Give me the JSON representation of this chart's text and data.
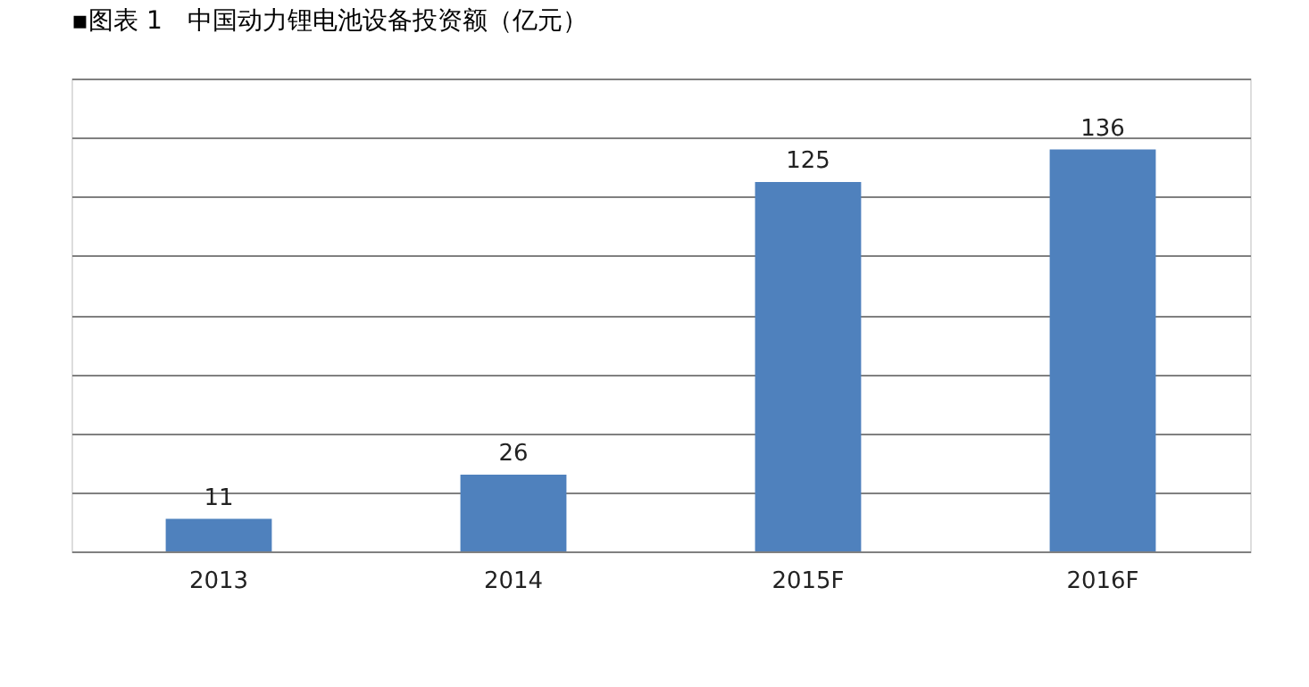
{
  "chart_data": {
    "type": "bar",
    "title": "▪图表 1　中国动力锂电池设备投资额（亿元）",
    "categories": [
      "2013",
      "2014",
      "2015F",
      "2016F"
    ],
    "values": [
      11,
      26,
      125,
      136
    ],
    "color": "#4f81bd",
    "ylim": [
      0,
      160
    ],
    "yticks": [
      0,
      {
        "value": 20,
        "label": null
      },
      {
        "value": 40,
        "label": null
      },
      {
        "value": 60,
        "label": null
      },
      {
        "value": 80,
        "label": null
      },
      {
        "value": 100,
        "label": null
      },
      {
        "value": 120,
        "label": null
      },
      {
        "value": 140,
        "label": null
      },
      {
        "value": 160,
        "label": null
      }
    ],
    "tick_labels": "x",
    "grid": "y",
    "data_labels": true
  }
}
